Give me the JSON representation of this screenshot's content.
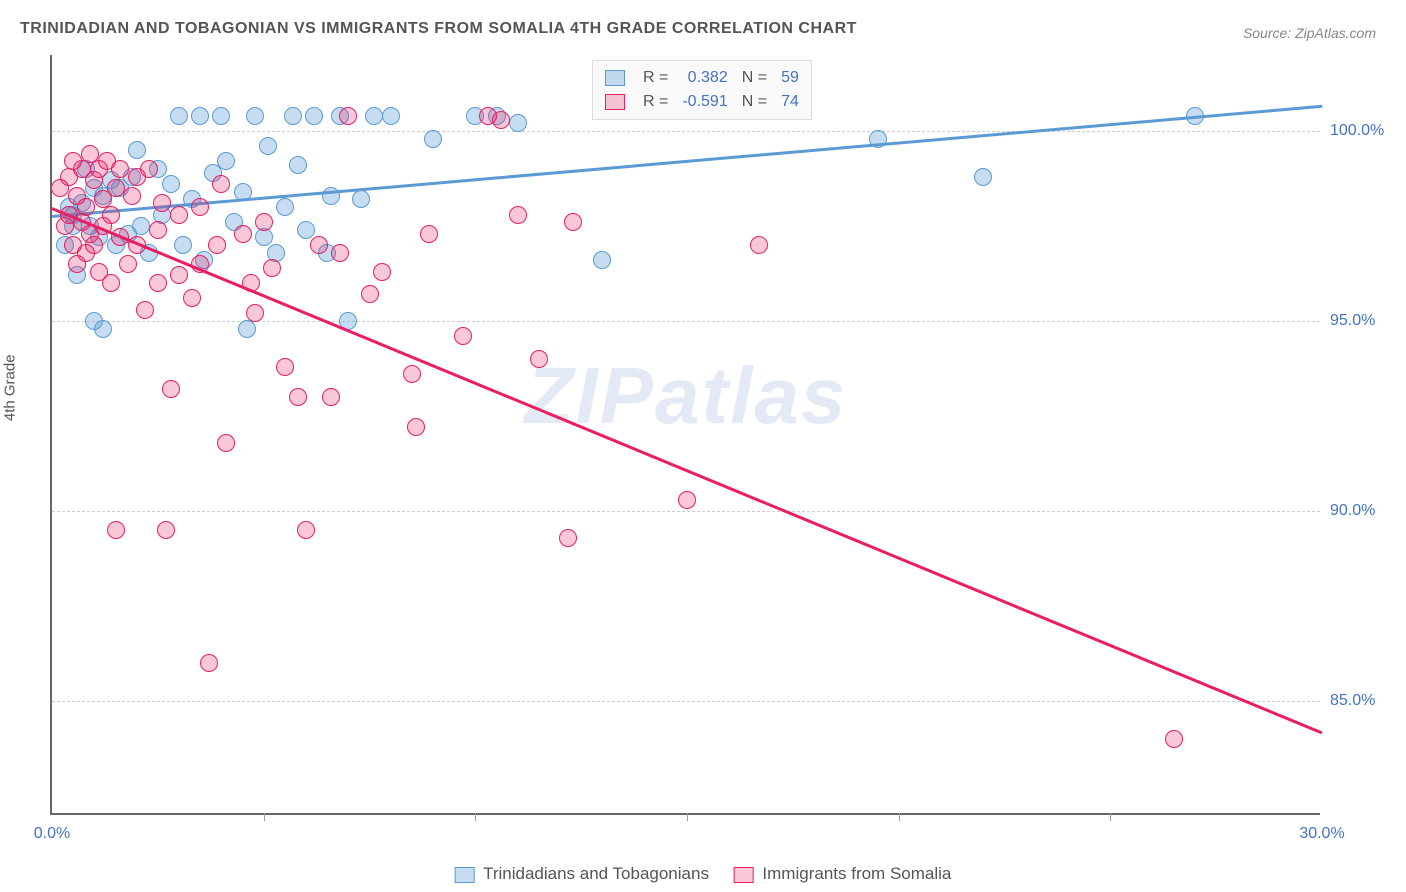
{
  "title": "TRINIDADIAN AND TOBAGONIAN VS IMMIGRANTS FROM SOMALIA 4TH GRADE CORRELATION CHART",
  "source": "Source: ZipAtlas.com",
  "ylabel": "4th Grade",
  "watermark": "ZIPatlas",
  "chart": {
    "type": "scatter",
    "xlim": [
      0,
      30
    ],
    "ylim": [
      82,
      102
    ],
    "ytick_values": [
      85,
      90,
      95,
      100
    ],
    "ytick_labels": [
      "85.0%",
      "90.0%",
      "95.0%",
      "100.0%"
    ],
    "xtick_major_values": [
      0,
      30
    ],
    "xtick_major_labels": [
      "0.0%",
      "30.0%"
    ],
    "xtick_minor_values": [
      5,
      10,
      15,
      20,
      25
    ],
    "grid_color": "#cccccc",
    "axis_color": "#666666",
    "background_color": "#ffffff",
    "label_color": "#4472c4",
    "label_fontsize": 16,
    "title_color": "#555555",
    "title_fontsize": 16,
    "marker_radius": 9,
    "marker_opacity": 0.35,
    "line_width": 2.5
  },
  "series": [
    {
      "name": "Trinidadians and Tobagonians",
      "color": "#5b9bd5",
      "fill": "rgba(91,155,213,0.35)",
      "stroke": "#5b9bd5",
      "R": "0.382",
      "N": "59",
      "trend": {
        "x1": 0,
        "y1": 97.8,
        "x2": 30,
        "y2": 100.7
      },
      "points": [
        [
          0.3,
          97.0
        ],
        [
          0.4,
          98.0
        ],
        [
          0.5,
          97.5
        ],
        [
          0.5,
          97.8
        ],
        [
          0.6,
          96.2
        ],
        [
          0.7,
          98.1
        ],
        [
          0.8,
          99.0
        ],
        [
          0.9,
          97.5
        ],
        [
          1.0,
          98.5
        ],
        [
          1.0,
          95.0
        ],
        [
          1.1,
          97.2
        ],
        [
          1.2,
          98.3
        ],
        [
          1.2,
          94.8
        ],
        [
          1.4,
          98.7
        ],
        [
          1.5,
          97.0
        ],
        [
          1.6,
          98.5
        ],
        [
          1.8,
          97.3
        ],
        [
          1.9,
          98.8
        ],
        [
          2.0,
          99.5
        ],
        [
          2.1,
          97.5
        ],
        [
          2.3,
          96.8
        ],
        [
          2.5,
          99.0
        ],
        [
          2.6,
          97.8
        ],
        [
          2.8,
          98.6
        ],
        [
          3.0,
          100.4
        ],
        [
          3.1,
          97.0
        ],
        [
          3.3,
          98.2
        ],
        [
          3.5,
          100.4
        ],
        [
          3.6,
          96.6
        ],
        [
          3.8,
          98.9
        ],
        [
          4.0,
          100.4
        ],
        [
          4.1,
          99.2
        ],
        [
          4.3,
          97.6
        ],
        [
          4.5,
          98.4
        ],
        [
          4.6,
          94.8
        ],
        [
          4.8,
          100.4
        ],
        [
          5.0,
          97.2
        ],
        [
          5.1,
          99.6
        ],
        [
          5.3,
          96.8
        ],
        [
          5.5,
          98.0
        ],
        [
          5.7,
          100.4
        ],
        [
          5.8,
          99.1
        ],
        [
          6.0,
          97.4
        ],
        [
          6.2,
          100.4
        ],
        [
          6.5,
          96.8
        ],
        [
          6.6,
          98.3
        ],
        [
          6.8,
          100.4
        ],
        [
          7.0,
          95.0
        ],
        [
          7.3,
          98.2
        ],
        [
          7.6,
          100.4
        ],
        [
          8.0,
          100.4
        ],
        [
          9.0,
          99.8
        ],
        [
          10.0,
          100.4
        ],
        [
          10.5,
          100.4
        ],
        [
          11.0,
          100.2
        ],
        [
          13.0,
          96.6
        ],
        [
          19.5,
          99.8
        ],
        [
          22.0,
          98.8
        ],
        [
          27.0,
          100.4
        ]
      ]
    },
    {
      "name": "Immigrants from Somalia",
      "color": "#e91e63",
      "fill": "rgba(233,30,99,0.25)",
      "stroke": "#e91e63",
      "R": "-0.591",
      "N": "74",
      "trend": {
        "x1": 0,
        "y1": 98.0,
        "x2": 30,
        "y2": 84.2
      },
      "points": [
        [
          0.2,
          98.5
        ],
        [
          0.3,
          97.5
        ],
        [
          0.4,
          98.8
        ],
        [
          0.4,
          97.8
        ],
        [
          0.5,
          99.2
        ],
        [
          0.5,
          97.0
        ],
        [
          0.6,
          98.3
        ],
        [
          0.6,
          96.5
        ],
        [
          0.7,
          99.0
        ],
        [
          0.7,
          97.6
        ],
        [
          0.8,
          98.0
        ],
        [
          0.8,
          96.8
        ],
        [
          0.9,
          99.4
        ],
        [
          0.9,
          97.3
        ],
        [
          1.0,
          98.7
        ],
        [
          1.0,
          97.0
        ],
        [
          1.1,
          99.0
        ],
        [
          1.1,
          96.3
        ],
        [
          1.2,
          98.2
        ],
        [
          1.2,
          97.5
        ],
        [
          1.3,
          99.2
        ],
        [
          1.4,
          97.8
        ],
        [
          1.4,
          96.0
        ],
        [
          1.5,
          98.5
        ],
        [
          1.5,
          89.5
        ],
        [
          1.6,
          99.0
        ],
        [
          1.6,
          97.2
        ],
        [
          1.8,
          96.5
        ],
        [
          1.9,
          98.3
        ],
        [
          2.0,
          97.0
        ],
        [
          2.0,
          98.8
        ],
        [
          2.2,
          95.3
        ],
        [
          2.3,
          99.0
        ],
        [
          2.5,
          97.4
        ],
        [
          2.5,
          96.0
        ],
        [
          2.6,
          98.1
        ],
        [
          2.7,
          89.5
        ],
        [
          2.8,
          93.2
        ],
        [
          3.0,
          97.8
        ],
        [
          3.0,
          96.2
        ],
        [
          3.3,
          95.6
        ],
        [
          3.5,
          98.0
        ],
        [
          3.5,
          96.5
        ],
        [
          3.7,
          86.0
        ],
        [
          3.9,
          97.0
        ],
        [
          4.0,
          98.6
        ],
        [
          4.1,
          91.8
        ],
        [
          4.5,
          97.3
        ],
        [
          4.7,
          96.0
        ],
        [
          4.8,
          95.2
        ],
        [
          5.0,
          97.6
        ],
        [
          5.2,
          96.4
        ],
        [
          5.5,
          93.8
        ],
        [
          5.8,
          93.0
        ],
        [
          6.0,
          89.5
        ],
        [
          6.3,
          97.0
        ],
        [
          6.6,
          93.0
        ],
        [
          6.8,
          96.8
        ],
        [
          7.0,
          100.4
        ],
        [
          7.5,
          95.7
        ],
        [
          7.8,
          96.3
        ],
        [
          8.5,
          93.6
        ],
        [
          8.6,
          92.2
        ],
        [
          8.9,
          97.3
        ],
        [
          9.7,
          94.6
        ],
        [
          10.3,
          100.4
        ],
        [
          10.6,
          100.3
        ],
        [
          11.0,
          97.8
        ],
        [
          11.5,
          94.0
        ],
        [
          12.2,
          89.3
        ],
        [
          12.3,
          97.6
        ],
        [
          15.0,
          90.3
        ],
        [
          16.7,
          97.0
        ],
        [
          26.5,
          84.0
        ]
      ]
    }
  ],
  "legend_top": {
    "label_R": "R =",
    "label_N": "N ="
  },
  "legend_bottom": {
    "series1_label": "Trinidadians and Tobagonians",
    "series2_label": "Immigrants from Somalia"
  }
}
